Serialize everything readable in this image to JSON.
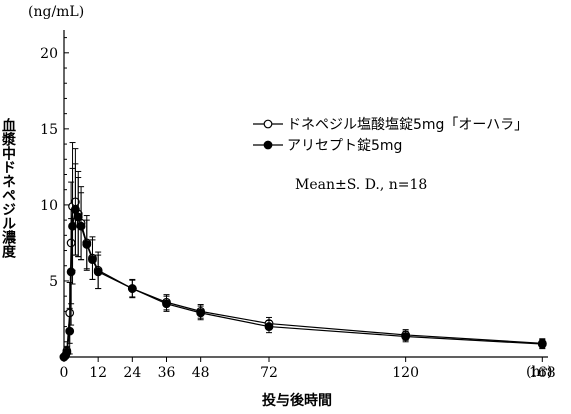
{
  "chart_data": {
    "type": "line",
    "ylabel": "血漿中ドネペジル濃度",
    "yunit": "(ng/mL)",
    "xlabel": "投与後時間",
    "xunit": "(hr)",
    "xlim": [
      0,
      170
    ],
    "ylim": [
      0,
      21.5
    ],
    "xticks": [
      0,
      12,
      24,
      36,
      48,
      72,
      120,
      168
    ],
    "yticks": [
      0,
      5,
      10,
      15,
      20
    ],
    "annotation": "Mean±S. D., n=18",
    "legend_position": "right",
    "series": [
      {
        "name": "ドネペジル塩酸塩錠5mg「オーハラ」",
        "marker": "open-circle",
        "points": [
          {
            "x": 0,
            "y": 0,
            "sd": 0
          },
          {
            "x": 0.5,
            "y": 0.1,
            "sd": 0.1
          },
          {
            "x": 1,
            "y": 0.4,
            "sd": 0.3
          },
          {
            "x": 2,
            "y": 2.9,
            "sd": 2.0
          },
          {
            "x": 2.5,
            "y": 7.5,
            "sd": 4.0
          },
          {
            "x": 3,
            "y": 9.9,
            "sd": 4.2
          },
          {
            "x": 4,
            "y": 10.2,
            "sd": 3.5
          },
          {
            "x": 5,
            "y": 9.4,
            "sd": 2.8
          },
          {
            "x": 6,
            "y": 8.8,
            "sd": 2.4
          },
          {
            "x": 8,
            "y": 7.5,
            "sd": 1.8
          },
          {
            "x": 10,
            "y": 6.5,
            "sd": 1.4
          },
          {
            "x": 12,
            "y": 5.7,
            "sd": 1.2
          },
          {
            "x": 24,
            "y": 4.5,
            "sd": 0.6
          },
          {
            "x": 36,
            "y": 3.6,
            "sd": 0.5
          },
          {
            "x": 48,
            "y": 3.0,
            "sd": 0.45
          },
          {
            "x": 72,
            "y": 2.2,
            "sd": 0.4
          },
          {
            "x": 120,
            "y": 1.45,
            "sd": 0.35
          },
          {
            "x": 168,
            "y": 0.9,
            "sd": 0.3
          }
        ]
      },
      {
        "name": "アリセプト錠5mg",
        "marker": "filled-circle",
        "points": [
          {
            "x": 0,
            "y": 0,
            "sd": 0
          },
          {
            "x": 0.5,
            "y": 0.1,
            "sd": 0.1
          },
          {
            "x": 1,
            "y": 0.3,
            "sd": 0.3
          },
          {
            "x": 2,
            "y": 1.7,
            "sd": 1.5
          },
          {
            "x": 2.5,
            "y": 5.6,
            "sd": 3.5
          },
          {
            "x": 3,
            "y": 8.6,
            "sd": 3.8
          },
          {
            "x": 4,
            "y": 9.7,
            "sd": 3.0
          },
          {
            "x": 5,
            "y": 9.2,
            "sd": 2.6
          },
          {
            "x": 6,
            "y": 8.6,
            "sd": 2.2
          },
          {
            "x": 8,
            "y": 7.4,
            "sd": 1.6
          },
          {
            "x": 10,
            "y": 6.4,
            "sd": 1.3
          },
          {
            "x": 12,
            "y": 5.6,
            "sd": 1.1
          },
          {
            "x": 24,
            "y": 4.5,
            "sd": 0.55
          },
          {
            "x": 36,
            "y": 3.5,
            "sd": 0.5
          },
          {
            "x": 48,
            "y": 2.9,
            "sd": 0.45
          },
          {
            "x": 72,
            "y": 2.0,
            "sd": 0.4
          },
          {
            "x": 120,
            "y": 1.35,
            "sd": 0.35
          },
          {
            "x": 168,
            "y": 0.85,
            "sd": 0.3
          }
        ]
      }
    ]
  }
}
